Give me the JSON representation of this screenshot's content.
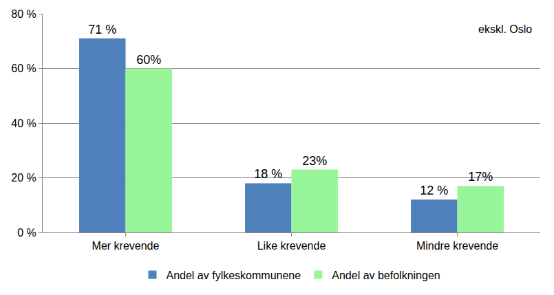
{
  "chart_data": {
    "type": "bar",
    "categories": [
      "Mer krevende",
      "Like krevende",
      "Mindre krevende"
    ],
    "series": [
      {
        "name": "Andel av fylkeskommunene",
        "color": "#4f81bd",
        "values": [
          71,
          18,
          12
        ],
        "value_labels": [
          "71 %",
          "18 %",
          "12 %"
        ]
      },
      {
        "name": "Andel av befolkningen",
        "color": "#99f599",
        "values": [
          60,
          23,
          17
        ],
        "value_labels": [
          "60%",
          "23%",
          "17%"
        ]
      }
    ],
    "ylim": [
      0,
      80
    ],
    "yticks": [
      {
        "value": 0,
        "label": "0 %"
      },
      {
        "value": 20,
        "label": "20 %"
      },
      {
        "value": 40,
        "label": "40 %"
      },
      {
        "value": 60,
        "label": "60 %"
      },
      {
        "value": 80,
        "label": "80 %"
      }
    ],
    "grid": true,
    "legend": "bottom",
    "data_labels": true,
    "annotations": [
      {
        "text": "ekskl. Oslo"
      }
    ]
  }
}
